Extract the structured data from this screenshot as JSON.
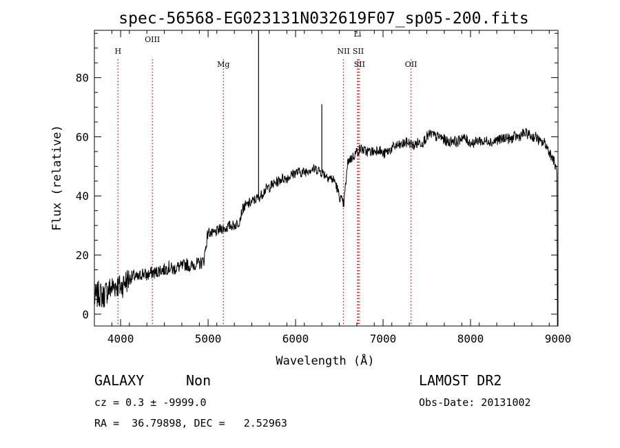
{
  "chart_data": {
    "type": "line",
    "title": "spec-56568-EG023131N032619F07_sp05-200.fits",
    "xlabel": "Wavelength (Å)",
    "ylabel": "Flux (relative)",
    "xlim": [
      3700,
      9000
    ],
    "ylim": [
      -4,
      96
    ],
    "x_ticks": [
      4000,
      5000,
      6000,
      7000,
      8000,
      9000
    ],
    "y_ticks": [
      0,
      20,
      40,
      60,
      80
    ],
    "grid": false,
    "line_color": "#000000",
    "marker_color": "#cc0000",
    "spectrum": {
      "x": [
        3700,
        3750,
        3800,
        3850,
        3900,
        3950,
        4000,
        4050,
        4100,
        4150,
        4200,
        4250,
        4300,
        4350,
        4400,
        4450,
        4500,
        4550,
        4600,
        4650,
        4700,
        4750,
        4800,
        4850,
        4900,
        4950,
        5000,
        5050,
        5100,
        5150,
        5200,
        5250,
        5300,
        5350,
        5400,
        5450,
        5500,
        5550,
        5600,
        5650,
        5700,
        5750,
        5800,
        5850,
        5900,
        5950,
        6000,
        6050,
        6100,
        6150,
        6200,
        6250,
        6300,
        6350,
        6400,
        6450,
        6500,
        6550,
        6600,
        6650,
        6700,
        6750,
        6800,
        6850,
        6900,
        6950,
        7000,
        7050,
        7100,
        7150,
        7200,
        7250,
        7300,
        7350,
        7400,
        7450,
        7500,
        7550,
        7600,
        7650,
        7700,
        7750,
        7800,
        7850,
        7900,
        7950,
        8000,
        8050,
        8100,
        8150,
        8200,
        8250,
        8300,
        8350,
        8400,
        8450,
        8500,
        8550,
        8600,
        8650,
        8700,
        8750,
        8800,
        8850,
        8900,
        8950,
        8990
      ],
      "y": [
        5,
        7,
        6,
        8,
        9,
        10,
        9,
        11,
        12,
        13,
        12,
        14,
        13,
        14,
        14,
        15,
        15,
        16,
        15,
        16,
        16,
        17,
        16,
        17,
        17,
        18,
        28,
        27,
        28,
        29,
        29,
        30,
        30,
        31,
        36,
        37,
        38,
        39,
        40,
        42,
        43,
        44,
        45,
        46,
        46,
        47,
        48,
        48,
        48,
        49,
        49,
        49,
        48,
        47,
        46,
        45,
        40,
        37,
        52,
        53,
        55,
        56,
        55,
        55,
        55,
        56,
        54,
        55,
        56,
        57,
        57,
        58,
        58,
        57,
        58,
        58,
        60,
        61,
        60,
        60,
        59,
        58,
        59,
        58,
        60,
        59,
        58,
        58,
        59,
        58,
        59,
        58,
        59,
        59,
        60,
        59,
        60,
        60,
        61,
        61,
        60,
        60,
        58,
        58,
        55,
        52,
        48
      ]
    },
    "spikes": [
      {
        "x": 5577,
        "y": 96
      },
      {
        "x": 6300,
        "y": 71
      }
    ],
    "line_markers": [
      {
        "label": "H",
        "x": 3970,
        "row": 1
      },
      {
        "label": "OIII",
        "x": 4363,
        "row": 0
      },
      {
        "label": "Mg",
        "x": 5175,
        "row": 2
      },
      {
        "label": "Li",
        "x": 6708,
        "row": -0.6
      },
      {
        "label": "NII",
        "x": 6548,
        "row": 1
      },
      {
        "label": "SII",
        "x": 6717,
        "row": 1
      },
      {
        "label": "SII",
        "x": 6731,
        "row": 2
      },
      {
        "label": "OII",
        "x": 7320,
        "row": 2
      }
    ]
  },
  "info": {
    "class_label": "GALAXY",
    "subclass_label": "Non",
    "survey": "LAMOST DR2",
    "cz_line": "cz = 0.3 ± -9999.0",
    "obs_date_line": "Obs-Date: 20131002",
    "radec_line": "RA =  36.79898, DEC =   2.52963"
  }
}
